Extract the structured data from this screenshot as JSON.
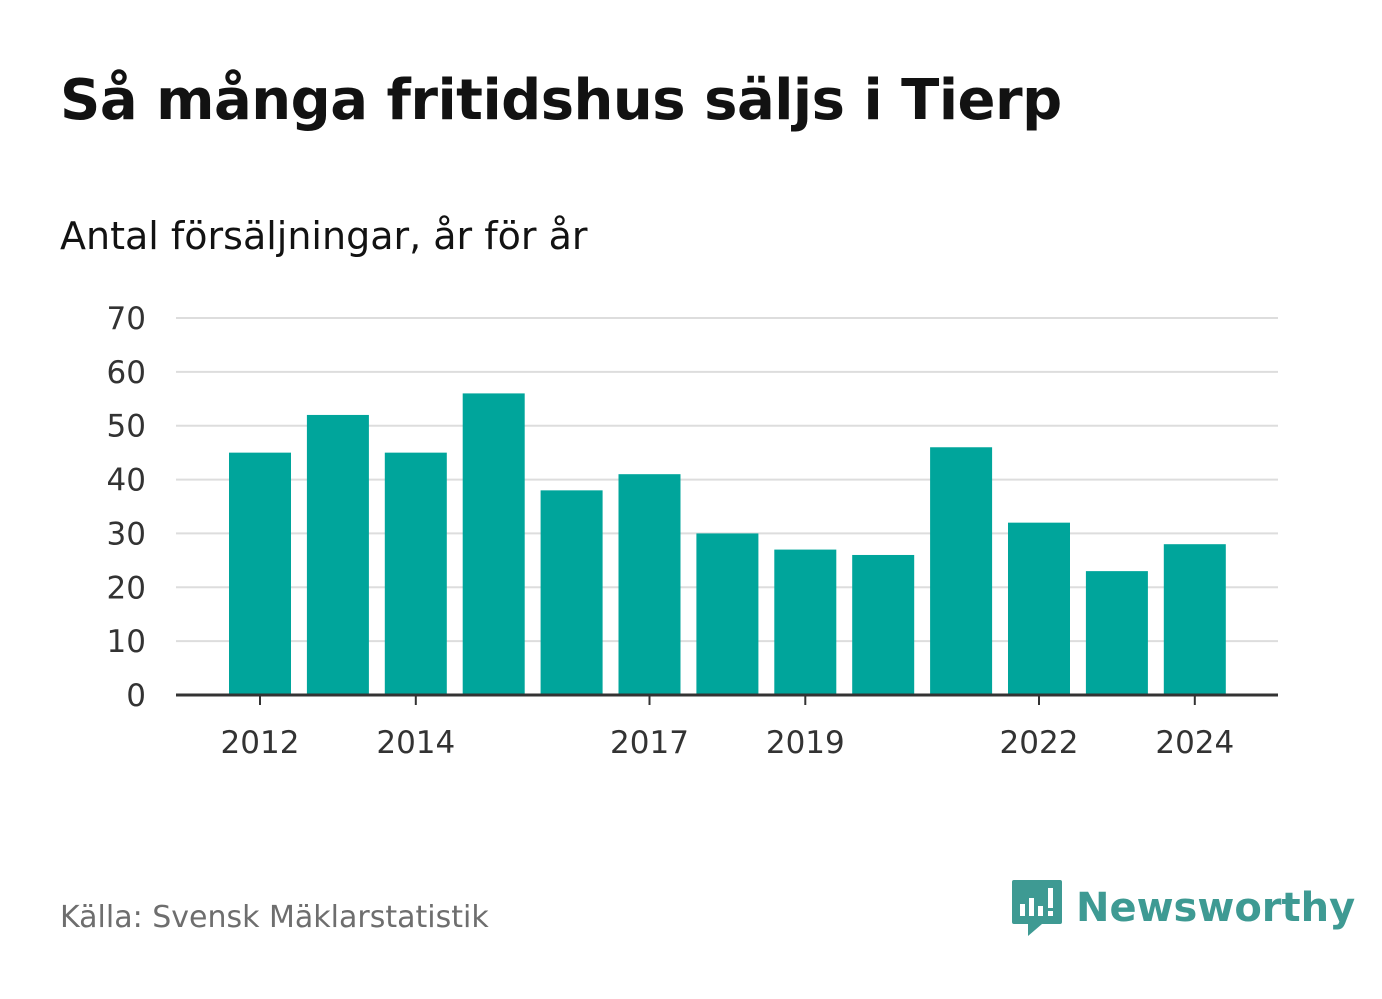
{
  "header": {
    "title": "Så många fritidshus säljs i Tierp",
    "subtitle": "Antal försäljningar, år för år"
  },
  "footer": {
    "source": "Källa: Svensk Mäklarstatistik",
    "brand": "Newsworthy",
    "brand_icon": "newsworthy-logo-icon"
  },
  "colors": {
    "bar": "#00a59b",
    "grid": "#dddddd",
    "axis": "#333333",
    "brand": "#3e9a93"
  },
  "chart_data": {
    "type": "bar",
    "categories": [
      "2012",
      "2013",
      "2014",
      "2015",
      "2016",
      "2017",
      "2018",
      "2019",
      "2020",
      "2021",
      "2022",
      "2023",
      "2024"
    ],
    "values": [
      45,
      52,
      45,
      56,
      38,
      41,
      30,
      27,
      26,
      46,
      32,
      23,
      28
    ],
    "x_tick_labels": [
      "2012",
      "2014",
      "2017",
      "2019",
      "2022",
      "2024"
    ],
    "y_ticks": [
      0,
      10,
      20,
      30,
      40,
      50,
      60,
      70
    ],
    "ylim": [
      0,
      70
    ],
    "grid": true,
    "title": "Så många fritidshus säljs i Tierp",
    "subtitle": "Antal försäljningar, år för år",
    "xlabel": "",
    "ylabel": ""
  }
}
